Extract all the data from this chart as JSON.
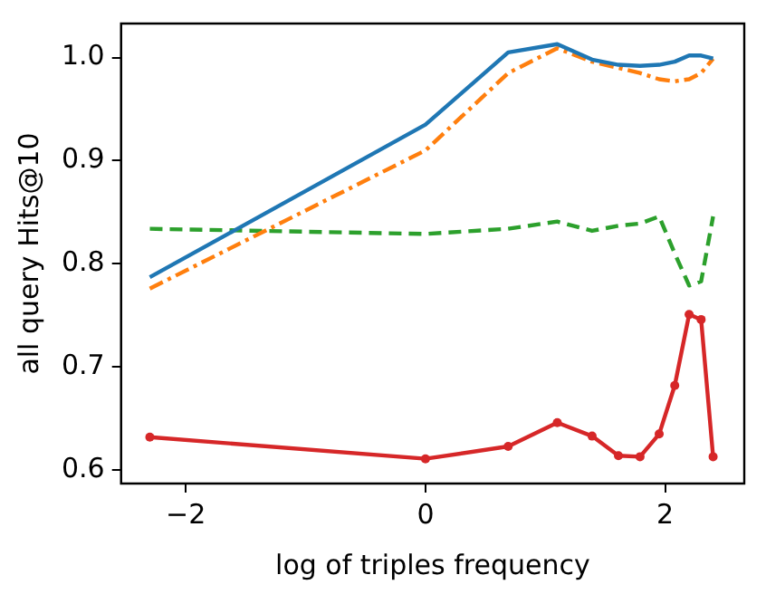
{
  "chart_data": {
    "type": "line",
    "xlabel": "log of triples frequency",
    "ylabel": "all query Hits@10",
    "x": [
      -2.3,
      0,
      0.69,
      1.1,
      1.39,
      1.61,
      1.79,
      1.95,
      2.08,
      2.2,
      2.3,
      2.4
    ],
    "series": [
      {
        "color": "#1f77b4",
        "line_style": "solid",
        "marker": "none",
        "values": [
          0.787,
          0.935,
          1.005,
          1.013,
          0.998,
          0.993,
          0.992,
          0.993,
          0.996,
          1.002,
          1.002,
          0.999
        ]
      },
      {
        "color": "#ff7f0e",
        "line_style": "dashdot",
        "marker": "none",
        "values": [
          0.776,
          0.91,
          0.985,
          1.009,
          0.996,
          0.99,
          0.985,
          0.979,
          0.977,
          0.979,
          0.985,
          0.999
        ]
      },
      {
        "color": "#2ca02c",
        "line_style": "dashed",
        "marker": "none",
        "values": [
          0.834,
          0.829,
          0.834,
          0.841,
          0.832,
          0.837,
          0.839,
          0.846,
          0.81,
          0.779,
          0.783,
          0.846
        ]
      },
      {
        "color": "#d62728",
        "line_style": "solid",
        "marker": "circle",
        "values": [
          0.632,
          0.611,
          0.623,
          0.646,
          0.633,
          0.614,
          0.613,
          0.635,
          0.682,
          0.751,
          0.746,
          0.613
        ]
      }
    ],
    "xlim": [
      -2.54,
      2.66
    ],
    "ylim": [
      0.587,
      1.033
    ],
    "xticks": [
      {
        "value": -2,
        "label": "−2"
      },
      0,
      2
    ],
    "yticks": [
      0.6,
      0.7,
      0.8,
      0.9,
      {
        "value": 1,
        "label": "1.0"
      }
    ],
    "grid": false,
    "legend": false
  }
}
